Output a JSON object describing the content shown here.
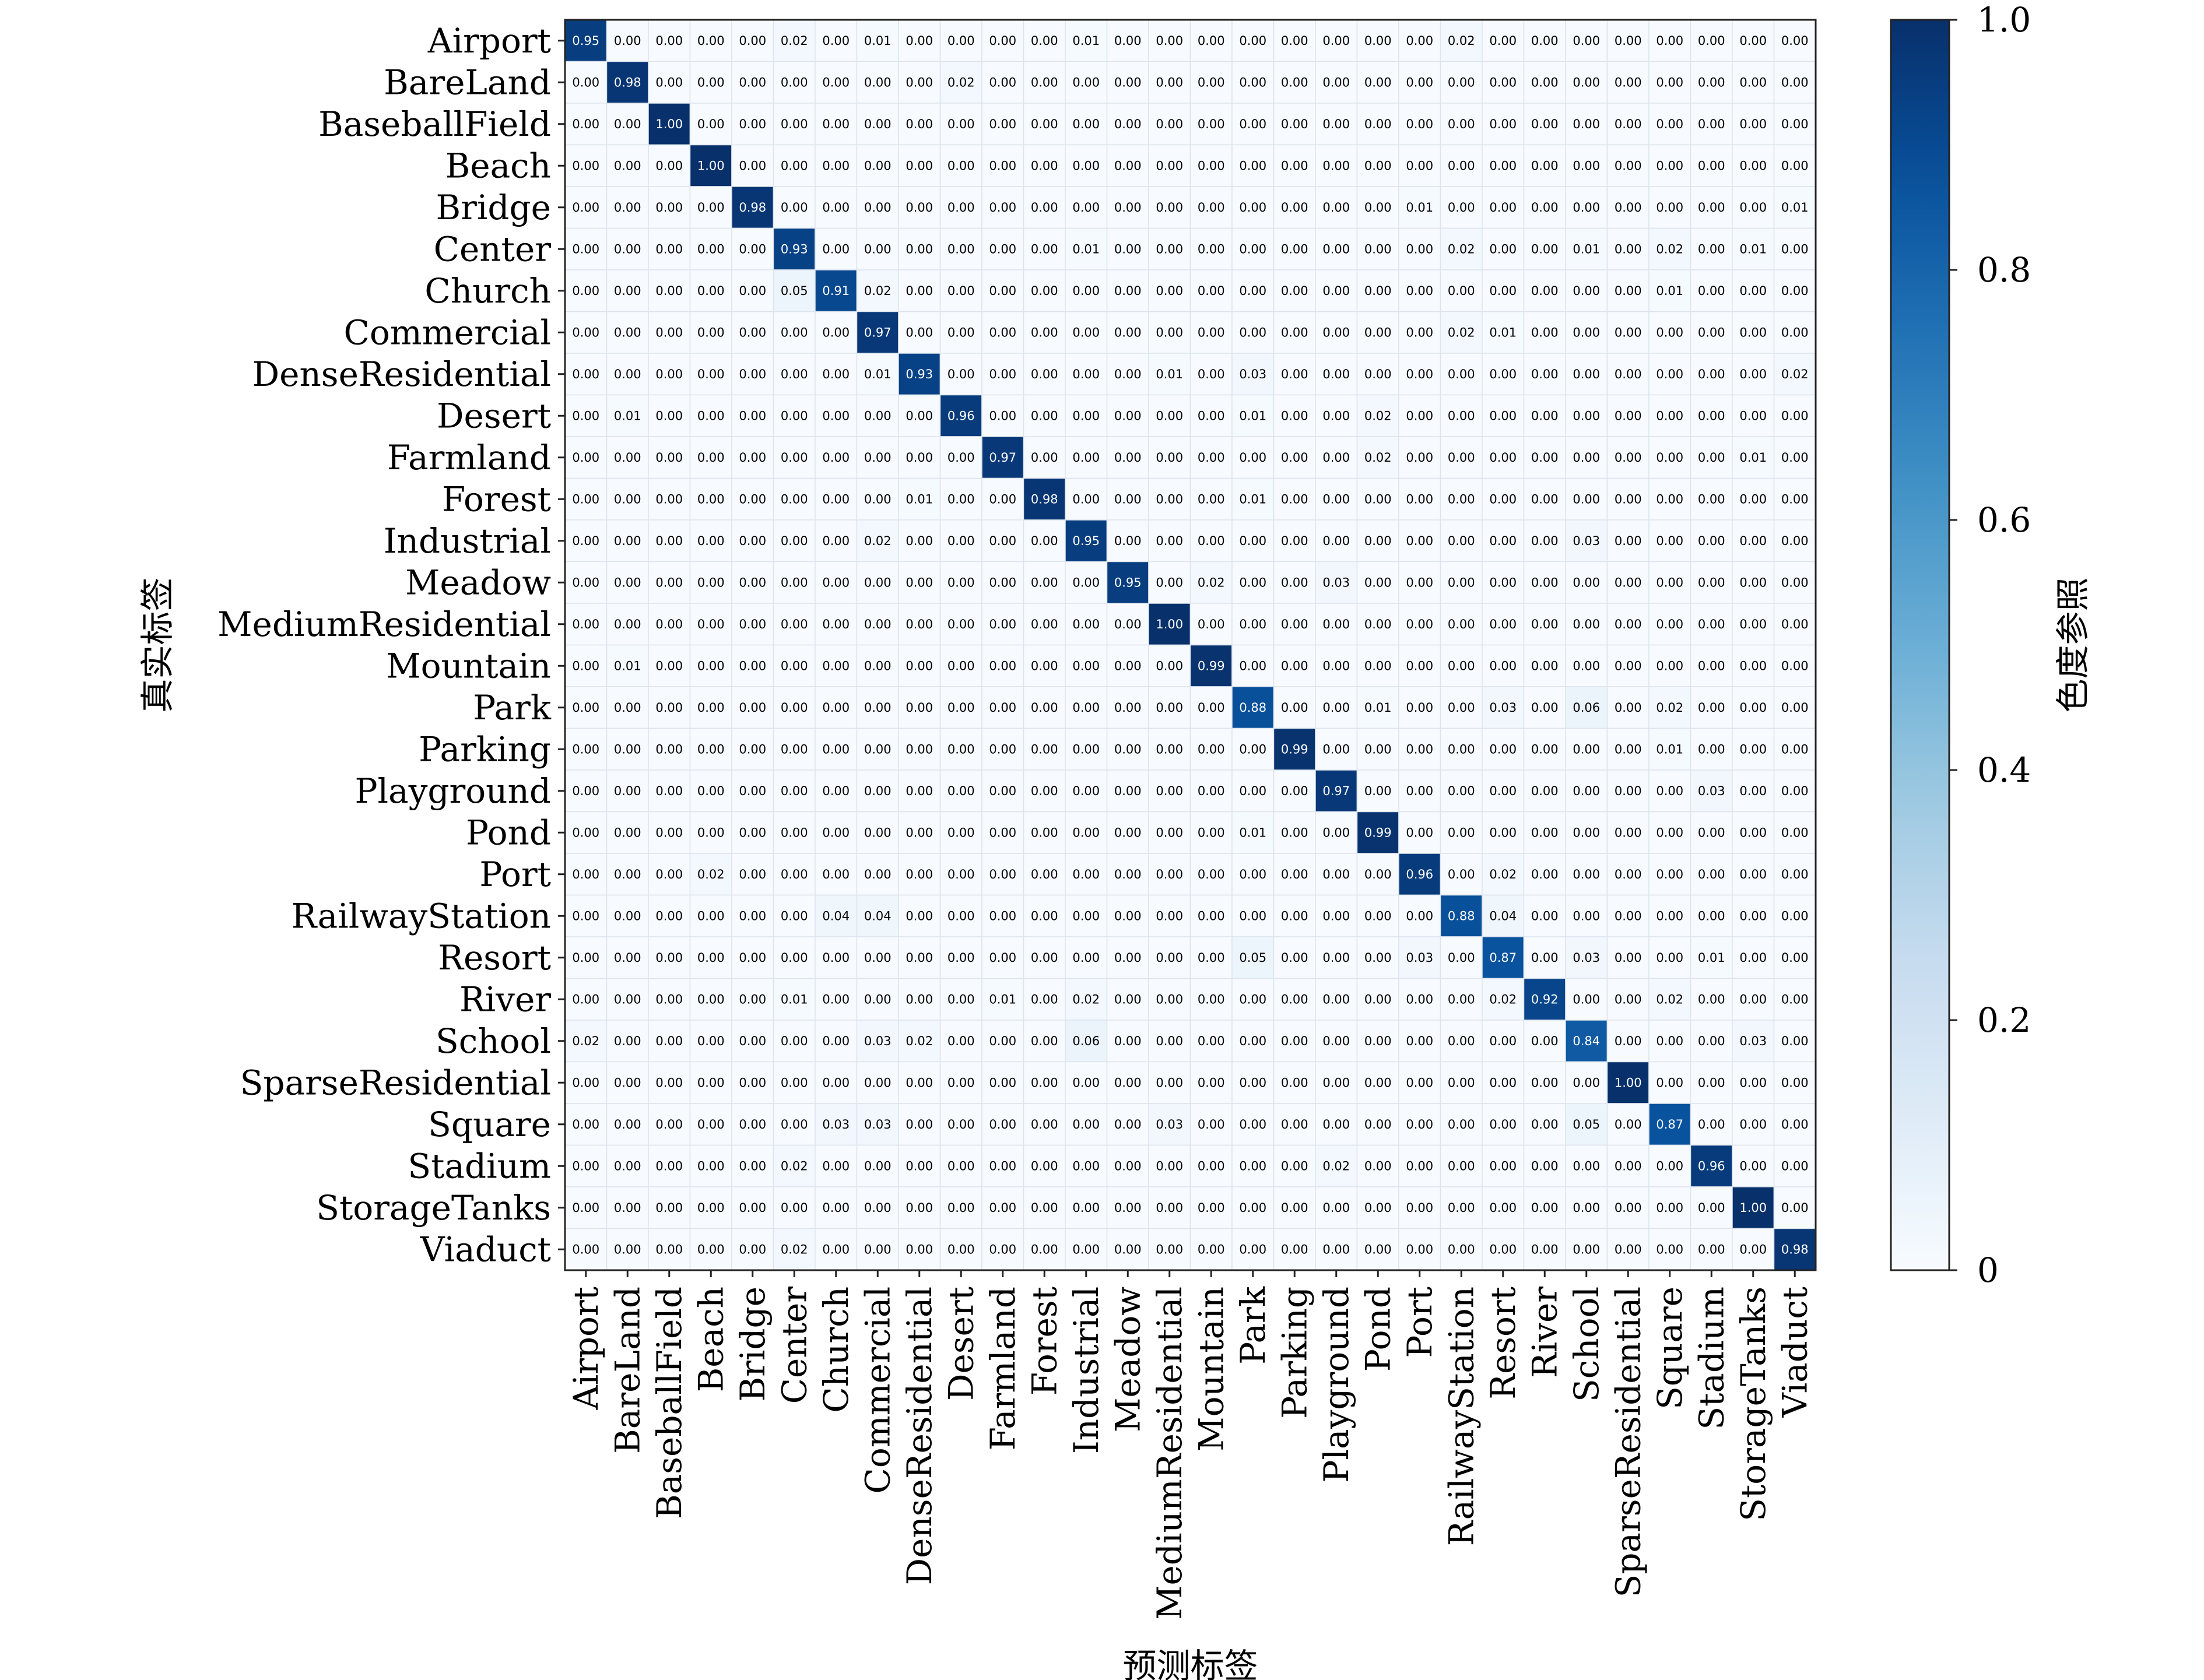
{
  "chart_data": {
    "type": "heatmap",
    "xlabel": "预测标签",
    "ylabel": "真实标签",
    "colorbar_label": "色度参照",
    "colormap": "Blues",
    "vmin": 0,
    "vmax": 1,
    "colorbar_ticks": [
      "0",
      "0.2",
      "0.4",
      "0.6",
      "0.8",
      "1.0"
    ],
    "colorbar_tick_values": [
      0,
      0.2,
      0.4,
      0.6,
      0.8,
      1.0
    ],
    "grid": true,
    "categories": [
      "Airport",
      "BareLand",
      "BaseballField",
      "Beach",
      "Bridge",
      "Center",
      "Church",
      "Commercial",
      "DenseResidential",
      "Desert",
      "Farmland",
      "Forest",
      "Industrial",
      "Meadow",
      "MediumResidential",
      "Mountain",
      "Park",
      "Parking",
      "Playground",
      "Pond",
      "Port",
      "RailwayStation",
      "Resort",
      "River",
      "School",
      "SparseResidential",
      "Square",
      "Stadium",
      "StorageTanks",
      "Viaduct"
    ],
    "matrix": [
      [
        0.95,
        0,
        0,
        0,
        0,
        0.02,
        0,
        0.01,
        0,
        0,
        0,
        0,
        0.01,
        0,
        0,
        0,
        0,
        0,
        0,
        0,
        0,
        0.02,
        0,
        0,
        0,
        0,
        0,
        0,
        0,
        0
      ],
      [
        0,
        0.98,
        0,
        0,
        0,
        0,
        0,
        0,
        0,
        0.02,
        0,
        0,
        0,
        0,
        0,
        0,
        0,
        0,
        0,
        0,
        0,
        0,
        0,
        0,
        0,
        0,
        0,
        0,
        0,
        0
      ],
      [
        0,
        0,
        1.0,
        0,
        0,
        0,
        0,
        0,
        0,
        0,
        0,
        0,
        0,
        0,
        0,
        0,
        0,
        0,
        0,
        0,
        0,
        0,
        0,
        0,
        0,
        0,
        0,
        0,
        0,
        0
      ],
      [
        0,
        0,
        0,
        1.0,
        0,
        0,
        0,
        0,
        0,
        0,
        0,
        0,
        0,
        0,
        0,
        0,
        0,
        0,
        0,
        0,
        0,
        0,
        0,
        0,
        0,
        0,
        0,
        0,
        0,
        0
      ],
      [
        0,
        0,
        0,
        0,
        0.98,
        0,
        0,
        0,
        0,
        0,
        0,
        0,
        0,
        0,
        0,
        0,
        0,
        0,
        0,
        0,
        0.01,
        0,
        0,
        0,
        0,
        0,
        0,
        0,
        0,
        0.01
      ],
      [
        0,
        0,
        0,
        0,
        0,
        0.93,
        0,
        0,
        0,
        0,
        0,
        0,
        0.01,
        0,
        0,
        0,
        0,
        0,
        0,
        0,
        0,
        0.02,
        0,
        0,
        0.01,
        0,
        0.02,
        0,
        0.01,
        0
      ],
      [
        0,
        0,
        0,
        0,
        0,
        0.05,
        0.91,
        0.02,
        0,
        0,
        0,
        0,
        0,
        0,
        0,
        0,
        0,
        0,
        0,
        0,
        0,
        0,
        0,
        0,
        0,
        0,
        0.01,
        0,
        0,
        0
      ],
      [
        0,
        0,
        0,
        0,
        0,
        0,
        0,
        0.97,
        0,
        0,
        0,
        0,
        0,
        0,
        0,
        0,
        0,
        0,
        0,
        0,
        0,
        0.02,
        0.01,
        0,
        0,
        0,
        0,
        0,
        0,
        0
      ],
      [
        0,
        0,
        0,
        0,
        0,
        0,
        0,
        0.01,
        0.93,
        0,
        0,
        0,
        0,
        0,
        0.01,
        0,
        0.03,
        0,
        0,
        0,
        0,
        0,
        0,
        0,
        0,
        0,
        0,
        0,
        0,
        0.02
      ],
      [
        0,
        0.01,
        0,
        0,
        0,
        0,
        0,
        0,
        0,
        0.96,
        0,
        0,
        0,
        0,
        0,
        0,
        0.01,
        0,
        0,
        0.02,
        0,
        0,
        0,
        0,
        0,
        0,
        0,
        0,
        0,
        0
      ],
      [
        0,
        0,
        0,
        0,
        0,
        0,
        0,
        0,
        0,
        0,
        0.97,
        0,
        0,
        0,
        0,
        0,
        0,
        0,
        0,
        0.02,
        0,
        0,
        0,
        0,
        0,
        0,
        0,
        0,
        0.01,
        0
      ],
      [
        0,
        0,
        0,
        0,
        0,
        0,
        0,
        0,
        0.01,
        0,
        0,
        0.98,
        0,
        0,
        0,
        0,
        0.01,
        0,
        0,
        0,
        0,
        0,
        0,
        0,
        0,
        0,
        0,
        0,
        0,
        0
      ],
      [
        0,
        0,
        0,
        0,
        0,
        0,
        0,
        0.02,
        0,
        0,
        0,
        0,
        0.95,
        0,
        0,
        0,
        0,
        0,
        0,
        0,
        0,
        0,
        0,
        0,
        0.03,
        0,
        0,
        0,
        0,
        0
      ],
      [
        0,
        0,
        0,
        0,
        0,
        0,
        0,
        0,
        0,
        0,
        0,
        0,
        0,
        0.95,
        0,
        0.02,
        0,
        0,
        0.03,
        0,
        0,
        0,
        0,
        0,
        0,
        0,
        0,
        0,
        0,
        0
      ],
      [
        0,
        0,
        0,
        0,
        0,
        0,
        0,
        0,
        0,
        0,
        0,
        0,
        0,
        0,
        1.0,
        0,
        0,
        0,
        0,
        0,
        0,
        0,
        0,
        0,
        0,
        0,
        0,
        0,
        0,
        0
      ],
      [
        0,
        0.01,
        0,
        0,
        0,
        0,
        0,
        0,
        0,
        0,
        0,
        0,
        0,
        0,
        0,
        0.99,
        0,
        0,
        0,
        0,
        0,
        0,
        0,
        0,
        0,
        0,
        0,
        0,
        0,
        0
      ],
      [
        0,
        0,
        0,
        0,
        0,
        0,
        0,
        0,
        0,
        0,
        0,
        0,
        0,
        0,
        0,
        0,
        0.88,
        0,
        0,
        0.01,
        0,
        0,
        0.03,
        0,
        0.06,
        0,
        0.02,
        0,
        0,
        0
      ],
      [
        0,
        0,
        0,
        0,
        0,
        0,
        0,
        0,
        0,
        0,
        0,
        0,
        0,
        0,
        0,
        0,
        0,
        0.99,
        0,
        0,
        0,
        0,
        0,
        0,
        0,
        0,
        0.01,
        0,
        0,
        0
      ],
      [
        0,
        0,
        0,
        0,
        0,
        0,
        0,
        0,
        0,
        0,
        0,
        0,
        0,
        0,
        0,
        0,
        0,
        0,
        0.97,
        0,
        0,
        0,
        0,
        0,
        0,
        0,
        0,
        0.03,
        0,
        0
      ],
      [
        0,
        0,
        0,
        0,
        0,
        0,
        0,
        0,
        0,
        0,
        0,
        0,
        0,
        0,
        0,
        0,
        0.01,
        0,
        0,
        0.99,
        0,
        0,
        0,
        0,
        0,
        0,
        0,
        0,
        0,
        0
      ],
      [
        0,
        0,
        0,
        0.02,
        0,
        0,
        0,
        0,
        0,
        0,
        0,
        0,
        0,
        0,
        0,
        0,
        0,
        0,
        0,
        0,
        0.96,
        0,
        0.02,
        0,
        0,
        0,
        0,
        0,
        0,
        0
      ],
      [
        0,
        0,
        0,
        0,
        0,
        0,
        0.04,
        0.04,
        0,
        0,
        0,
        0,
        0,
        0,
        0,
        0,
        0,
        0,
        0,
        0,
        0,
        0.88,
        0.04,
        0,
        0,
        0,
        0,
        0,
        0,
        0
      ],
      [
        0,
        0,
        0,
        0,
        0,
        0,
        0,
        0,
        0,
        0,
        0,
        0,
        0,
        0,
        0,
        0,
        0.05,
        0,
        0,
        0,
        0.03,
        0,
        0.87,
        0,
        0.03,
        0,
        0,
        0.01,
        0,
        0
      ],
      [
        0,
        0,
        0,
        0,
        0,
        0.01,
        0,
        0,
        0,
        0,
        0.01,
        0,
        0.02,
        0,
        0,
        0,
        0,
        0,
        0,
        0,
        0,
        0,
        0.02,
        0.92,
        0,
        0,
        0.02,
        0,
        0,
        0
      ],
      [
        0.02,
        0,
        0,
        0,
        0,
        0,
        0,
        0.03,
        0.02,
        0,
        0,
        0,
        0.06,
        0,
        0,
        0,
        0,
        0,
        0,
        0,
        0,
        0,
        0,
        0,
        0.84,
        0,
        0,
        0,
        0.03,
        0
      ],
      [
        0,
        0,
        0,
        0,
        0,
        0,
        0,
        0,
        0,
        0,
        0,
        0,
        0,
        0,
        0,
        0,
        0,
        0,
        0,
        0,
        0,
        0,
        0,
        0,
        0,
        1.0,
        0,
        0,
        0,
        0
      ],
      [
        0,
        0,
        0,
        0,
        0,
        0,
        0.03,
        0.03,
        0,
        0,
        0,
        0,
        0,
        0,
        0.03,
        0,
        0,
        0,
        0,
        0,
        0,
        0,
        0,
        0,
        0.05,
        0,
        0.87,
        0,
        0,
        0
      ],
      [
        0,
        0,
        0,
        0,
        0,
        0.02,
        0,
        0,
        0,
        0,
        0,
        0,
        0,
        0,
        0,
        0,
        0,
        0,
        0.02,
        0,
        0,
        0,
        0,
        0,
        0,
        0,
        0,
        0.96,
        0,
        0
      ],
      [
        0,
        0,
        0,
        0,
        0,
        0,
        0,
        0,
        0,
        0,
        0,
        0,
        0,
        0,
        0,
        0,
        0,
        0,
        0,
        0,
        0,
        0,
        0,
        0,
        0,
        0,
        0,
        0,
        1.0,
        0
      ],
      [
        0,
        0,
        0,
        0,
        0,
        0.02,
        0,
        0,
        0,
        0,
        0,
        0,
        0,
        0,
        0,
        0,
        0,
        0,
        0,
        0,
        0,
        0,
        0,
        0,
        0,
        0,
        0,
        0,
        0,
        0.98
      ]
    ]
  }
}
